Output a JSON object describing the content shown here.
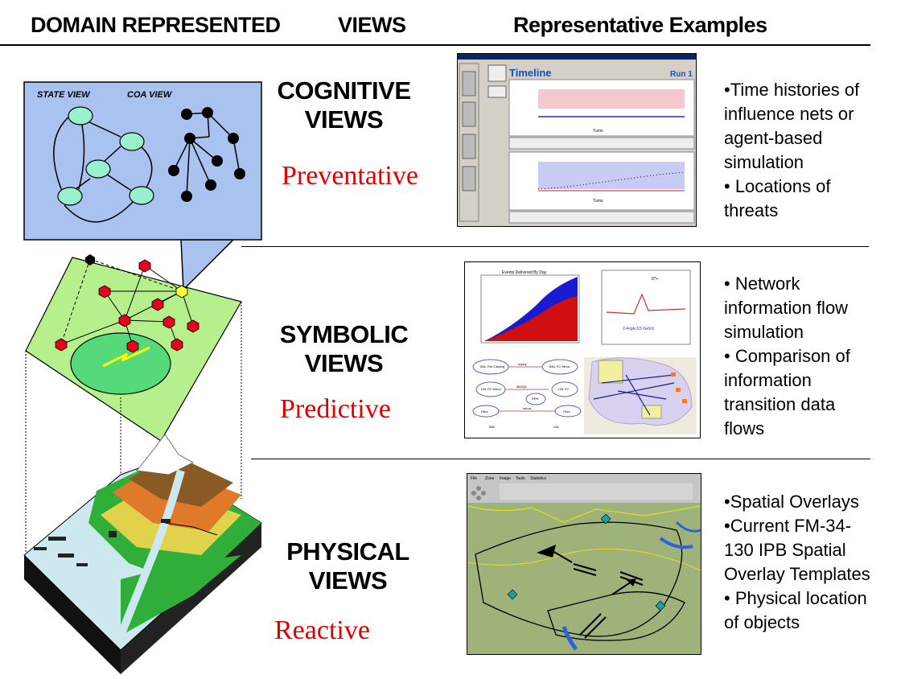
{
  "headers": {
    "domain": "DOMAIN REPRESENTED",
    "views": "VIEWS",
    "examples": "Representative Examples"
  },
  "illustration": {
    "state_view": "STATE VIEW",
    "coa_view": "COA VIEW"
  },
  "rows": [
    {
      "title_line1": "COGNITIVE",
      "title_line2": "VIEWS",
      "subtitle": "Preventative",
      "bullets": [
        "•Time histories of",
        "influence nets or",
        "agent-based",
        "simulation",
        "•  Locations of",
        "threats"
      ]
    },
    {
      "title_line1": "SYMBOLIC",
      "title_line2": "VIEWS",
      "subtitle": "Predictive",
      "bullets": [
        "• Network",
        "information flow",
        "simulation",
        "• Comparison of",
        "information",
        "transition data",
        "flows"
      ]
    },
    {
      "title_line1": "PHYSICAL",
      "title_line2": "VIEWS",
      "subtitle": "Reactive",
      "bullets": [
        "•Spatial Overlays",
        "•Current FM-34-",
        "130 IPB Spatial",
        "Overlay Templates",
        "• Physical location",
        "of objects"
      ]
    }
  ],
  "timeline_shot": {
    "title": "Timeline",
    "run": "Run 1",
    "axis_label": "Turns"
  },
  "symbolic_shot": {
    "chart_title": "Events Delivered By Day",
    "peak_label": "D*+",
    "fit_label": "2.4<pt<3.5 GeV/c",
    "nodes": [
      "BNL File Catalog",
      "BNL FC Mirror",
      "LBL FC Mirror",
      "RRS",
      "LBL FC",
      "Files",
      "Files"
    ],
    "edge_labels": [
      "mysql",
      "MySQL",
      "mirror"
    ],
    "site_labels": [
      "BNL",
      "LBL"
    ]
  },
  "physical_shot": {
    "menu": [
      "File",
      "Zone",
      "Image",
      "Tools",
      "Statistics"
    ]
  }
}
